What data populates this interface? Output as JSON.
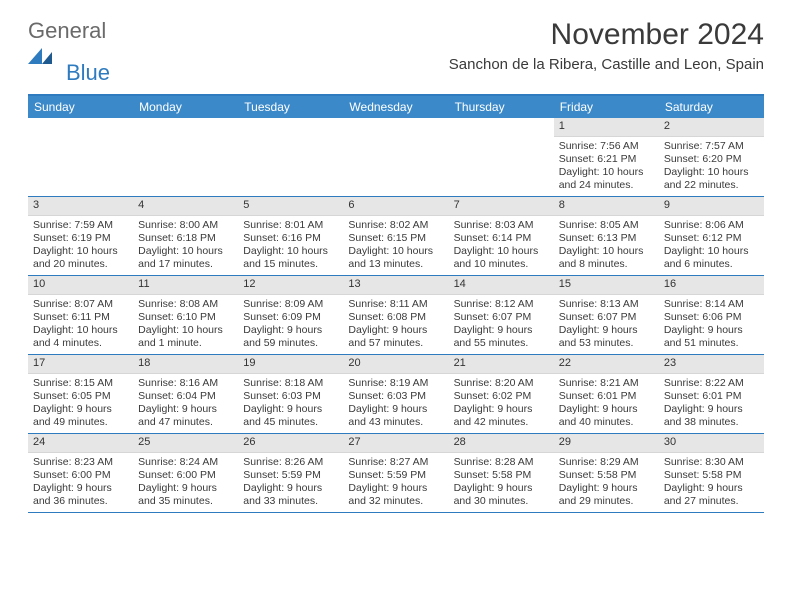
{
  "brand": {
    "part1": "General",
    "part2": "Blue"
  },
  "colors": {
    "accent": "#3b89c9",
    "accent_border": "#2f7bbf",
    "band": "#e6e6e6",
    "text": "#3a3a3a",
    "logo_gray": "#6a6a6a",
    "logo_blue": "#2f7bbf"
  },
  "table": {
    "type": "calendar-grid",
    "columns": 7,
    "rows": 5,
    "header_bg": "#3b89c9",
    "header_fg": "#ffffff",
    "header_fontsize": 12,
    "daynum_band_bg": "#e6e6e6",
    "cell_fontsize": 10.5,
    "row_border_color": "#2f7bbf"
  },
  "title": {
    "month": "November 2024",
    "location": "Sanchon de la Ribera, Castille and Leon, Spain"
  },
  "weekdays": [
    "Sunday",
    "Monday",
    "Tuesday",
    "Wednesday",
    "Thursday",
    "Friday",
    "Saturday"
  ],
  "weeks": [
    [
      {
        "empty": true
      },
      {
        "empty": true
      },
      {
        "empty": true
      },
      {
        "empty": true
      },
      {
        "empty": true
      },
      {
        "day": "1",
        "sunrise": "Sunrise: 7:56 AM",
        "sunset": "Sunset: 6:21 PM",
        "daylight1": "Daylight: 10 hours",
        "daylight2": "and 24 minutes."
      },
      {
        "day": "2",
        "sunrise": "Sunrise: 7:57 AM",
        "sunset": "Sunset: 6:20 PM",
        "daylight1": "Daylight: 10 hours",
        "daylight2": "and 22 minutes."
      }
    ],
    [
      {
        "day": "3",
        "sunrise": "Sunrise: 7:59 AM",
        "sunset": "Sunset: 6:19 PM",
        "daylight1": "Daylight: 10 hours",
        "daylight2": "and 20 minutes."
      },
      {
        "day": "4",
        "sunrise": "Sunrise: 8:00 AM",
        "sunset": "Sunset: 6:18 PM",
        "daylight1": "Daylight: 10 hours",
        "daylight2": "and 17 minutes."
      },
      {
        "day": "5",
        "sunrise": "Sunrise: 8:01 AM",
        "sunset": "Sunset: 6:16 PM",
        "daylight1": "Daylight: 10 hours",
        "daylight2": "and 15 minutes."
      },
      {
        "day": "6",
        "sunrise": "Sunrise: 8:02 AM",
        "sunset": "Sunset: 6:15 PM",
        "daylight1": "Daylight: 10 hours",
        "daylight2": "and 13 minutes."
      },
      {
        "day": "7",
        "sunrise": "Sunrise: 8:03 AM",
        "sunset": "Sunset: 6:14 PM",
        "daylight1": "Daylight: 10 hours",
        "daylight2": "and 10 minutes."
      },
      {
        "day": "8",
        "sunrise": "Sunrise: 8:05 AM",
        "sunset": "Sunset: 6:13 PM",
        "daylight1": "Daylight: 10 hours",
        "daylight2": "and 8 minutes."
      },
      {
        "day": "9",
        "sunrise": "Sunrise: 8:06 AM",
        "sunset": "Sunset: 6:12 PM",
        "daylight1": "Daylight: 10 hours",
        "daylight2": "and 6 minutes."
      }
    ],
    [
      {
        "day": "10",
        "sunrise": "Sunrise: 8:07 AM",
        "sunset": "Sunset: 6:11 PM",
        "daylight1": "Daylight: 10 hours",
        "daylight2": "and 4 minutes."
      },
      {
        "day": "11",
        "sunrise": "Sunrise: 8:08 AM",
        "sunset": "Sunset: 6:10 PM",
        "daylight1": "Daylight: 10 hours",
        "daylight2": "and 1 minute."
      },
      {
        "day": "12",
        "sunrise": "Sunrise: 8:09 AM",
        "sunset": "Sunset: 6:09 PM",
        "daylight1": "Daylight: 9 hours",
        "daylight2": "and 59 minutes."
      },
      {
        "day": "13",
        "sunrise": "Sunrise: 8:11 AM",
        "sunset": "Sunset: 6:08 PM",
        "daylight1": "Daylight: 9 hours",
        "daylight2": "and 57 minutes."
      },
      {
        "day": "14",
        "sunrise": "Sunrise: 8:12 AM",
        "sunset": "Sunset: 6:07 PM",
        "daylight1": "Daylight: 9 hours",
        "daylight2": "and 55 minutes."
      },
      {
        "day": "15",
        "sunrise": "Sunrise: 8:13 AM",
        "sunset": "Sunset: 6:07 PM",
        "daylight1": "Daylight: 9 hours",
        "daylight2": "and 53 minutes."
      },
      {
        "day": "16",
        "sunrise": "Sunrise: 8:14 AM",
        "sunset": "Sunset: 6:06 PM",
        "daylight1": "Daylight: 9 hours",
        "daylight2": "and 51 minutes."
      }
    ],
    [
      {
        "day": "17",
        "sunrise": "Sunrise: 8:15 AM",
        "sunset": "Sunset: 6:05 PM",
        "daylight1": "Daylight: 9 hours",
        "daylight2": "and 49 minutes."
      },
      {
        "day": "18",
        "sunrise": "Sunrise: 8:16 AM",
        "sunset": "Sunset: 6:04 PM",
        "daylight1": "Daylight: 9 hours",
        "daylight2": "and 47 minutes."
      },
      {
        "day": "19",
        "sunrise": "Sunrise: 8:18 AM",
        "sunset": "Sunset: 6:03 PM",
        "daylight1": "Daylight: 9 hours",
        "daylight2": "and 45 minutes."
      },
      {
        "day": "20",
        "sunrise": "Sunrise: 8:19 AM",
        "sunset": "Sunset: 6:03 PM",
        "daylight1": "Daylight: 9 hours",
        "daylight2": "and 43 minutes."
      },
      {
        "day": "21",
        "sunrise": "Sunrise: 8:20 AM",
        "sunset": "Sunset: 6:02 PM",
        "daylight1": "Daylight: 9 hours",
        "daylight2": "and 42 minutes."
      },
      {
        "day": "22",
        "sunrise": "Sunrise: 8:21 AM",
        "sunset": "Sunset: 6:01 PM",
        "daylight1": "Daylight: 9 hours",
        "daylight2": "and 40 minutes."
      },
      {
        "day": "23",
        "sunrise": "Sunrise: 8:22 AM",
        "sunset": "Sunset: 6:01 PM",
        "daylight1": "Daylight: 9 hours",
        "daylight2": "and 38 minutes."
      }
    ],
    [
      {
        "day": "24",
        "sunrise": "Sunrise: 8:23 AM",
        "sunset": "Sunset: 6:00 PM",
        "daylight1": "Daylight: 9 hours",
        "daylight2": "and 36 minutes."
      },
      {
        "day": "25",
        "sunrise": "Sunrise: 8:24 AM",
        "sunset": "Sunset: 6:00 PM",
        "daylight1": "Daylight: 9 hours",
        "daylight2": "and 35 minutes."
      },
      {
        "day": "26",
        "sunrise": "Sunrise: 8:26 AM",
        "sunset": "Sunset: 5:59 PM",
        "daylight1": "Daylight: 9 hours",
        "daylight2": "and 33 minutes."
      },
      {
        "day": "27",
        "sunrise": "Sunrise: 8:27 AM",
        "sunset": "Sunset: 5:59 PM",
        "daylight1": "Daylight: 9 hours",
        "daylight2": "and 32 minutes."
      },
      {
        "day": "28",
        "sunrise": "Sunrise: 8:28 AM",
        "sunset": "Sunset: 5:58 PM",
        "daylight1": "Daylight: 9 hours",
        "daylight2": "and 30 minutes."
      },
      {
        "day": "29",
        "sunrise": "Sunrise: 8:29 AM",
        "sunset": "Sunset: 5:58 PM",
        "daylight1": "Daylight: 9 hours",
        "daylight2": "and 29 minutes."
      },
      {
        "day": "30",
        "sunrise": "Sunrise: 8:30 AM",
        "sunset": "Sunset: 5:58 PM",
        "daylight1": "Daylight: 9 hours",
        "daylight2": "and 27 minutes."
      }
    ]
  ]
}
